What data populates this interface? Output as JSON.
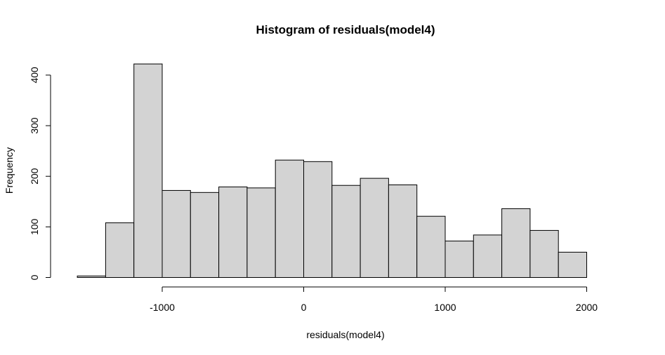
{
  "chart_data": {
    "type": "bar",
    "title": "Histogram of residuals(model4)",
    "xlabel": "residuals(model4)",
    "ylabel": "Frequency",
    "bins": [
      {
        "start": -1600,
        "end": -1400,
        "count": 3
      },
      {
        "start": -1400,
        "end": -1200,
        "count": 108
      },
      {
        "start": -1200,
        "end": -1000,
        "count": 422
      },
      {
        "start": -1000,
        "end": -800,
        "count": 172
      },
      {
        "start": -800,
        "end": -600,
        "count": 168
      },
      {
        "start": -600,
        "end": -400,
        "count": 179
      },
      {
        "start": -400,
        "end": -200,
        "count": 177
      },
      {
        "start": -200,
        "end": 0,
        "count": 232
      },
      {
        "start": 0,
        "end": 200,
        "count": 229
      },
      {
        "start": 200,
        "end": 400,
        "count": 182
      },
      {
        "start": 400,
        "end": 600,
        "count": 196
      },
      {
        "start": 600,
        "end": 800,
        "count": 183
      },
      {
        "start": 800,
        "end": 1000,
        "count": 121
      },
      {
        "start": 1000,
        "end": 1200,
        "count": 72
      },
      {
        "start": 1200,
        "end": 1400,
        "count": 84
      },
      {
        "start": 1400,
        "end": 1600,
        "count": 136
      },
      {
        "start": 1600,
        "end": 1800,
        "count": 93
      },
      {
        "start": 1800,
        "end": 2000,
        "count": 50
      }
    ],
    "xticks": [
      -1000,
      0,
      1000,
      2000
    ],
    "xtick_labels": [
      "-1000",
      "0",
      "1000",
      "2000"
    ],
    "yticks": [
      0,
      100,
      200,
      300,
      400
    ],
    "ytick_labels": [
      "0",
      "100",
      "200",
      "300",
      "400"
    ],
    "xlim": [
      -1600,
      2000
    ],
    "ylim": [
      0,
      422
    ],
    "grid": false,
    "colors": {
      "bar_fill": "#d3d3d3",
      "bar_stroke": "#000000"
    }
  }
}
